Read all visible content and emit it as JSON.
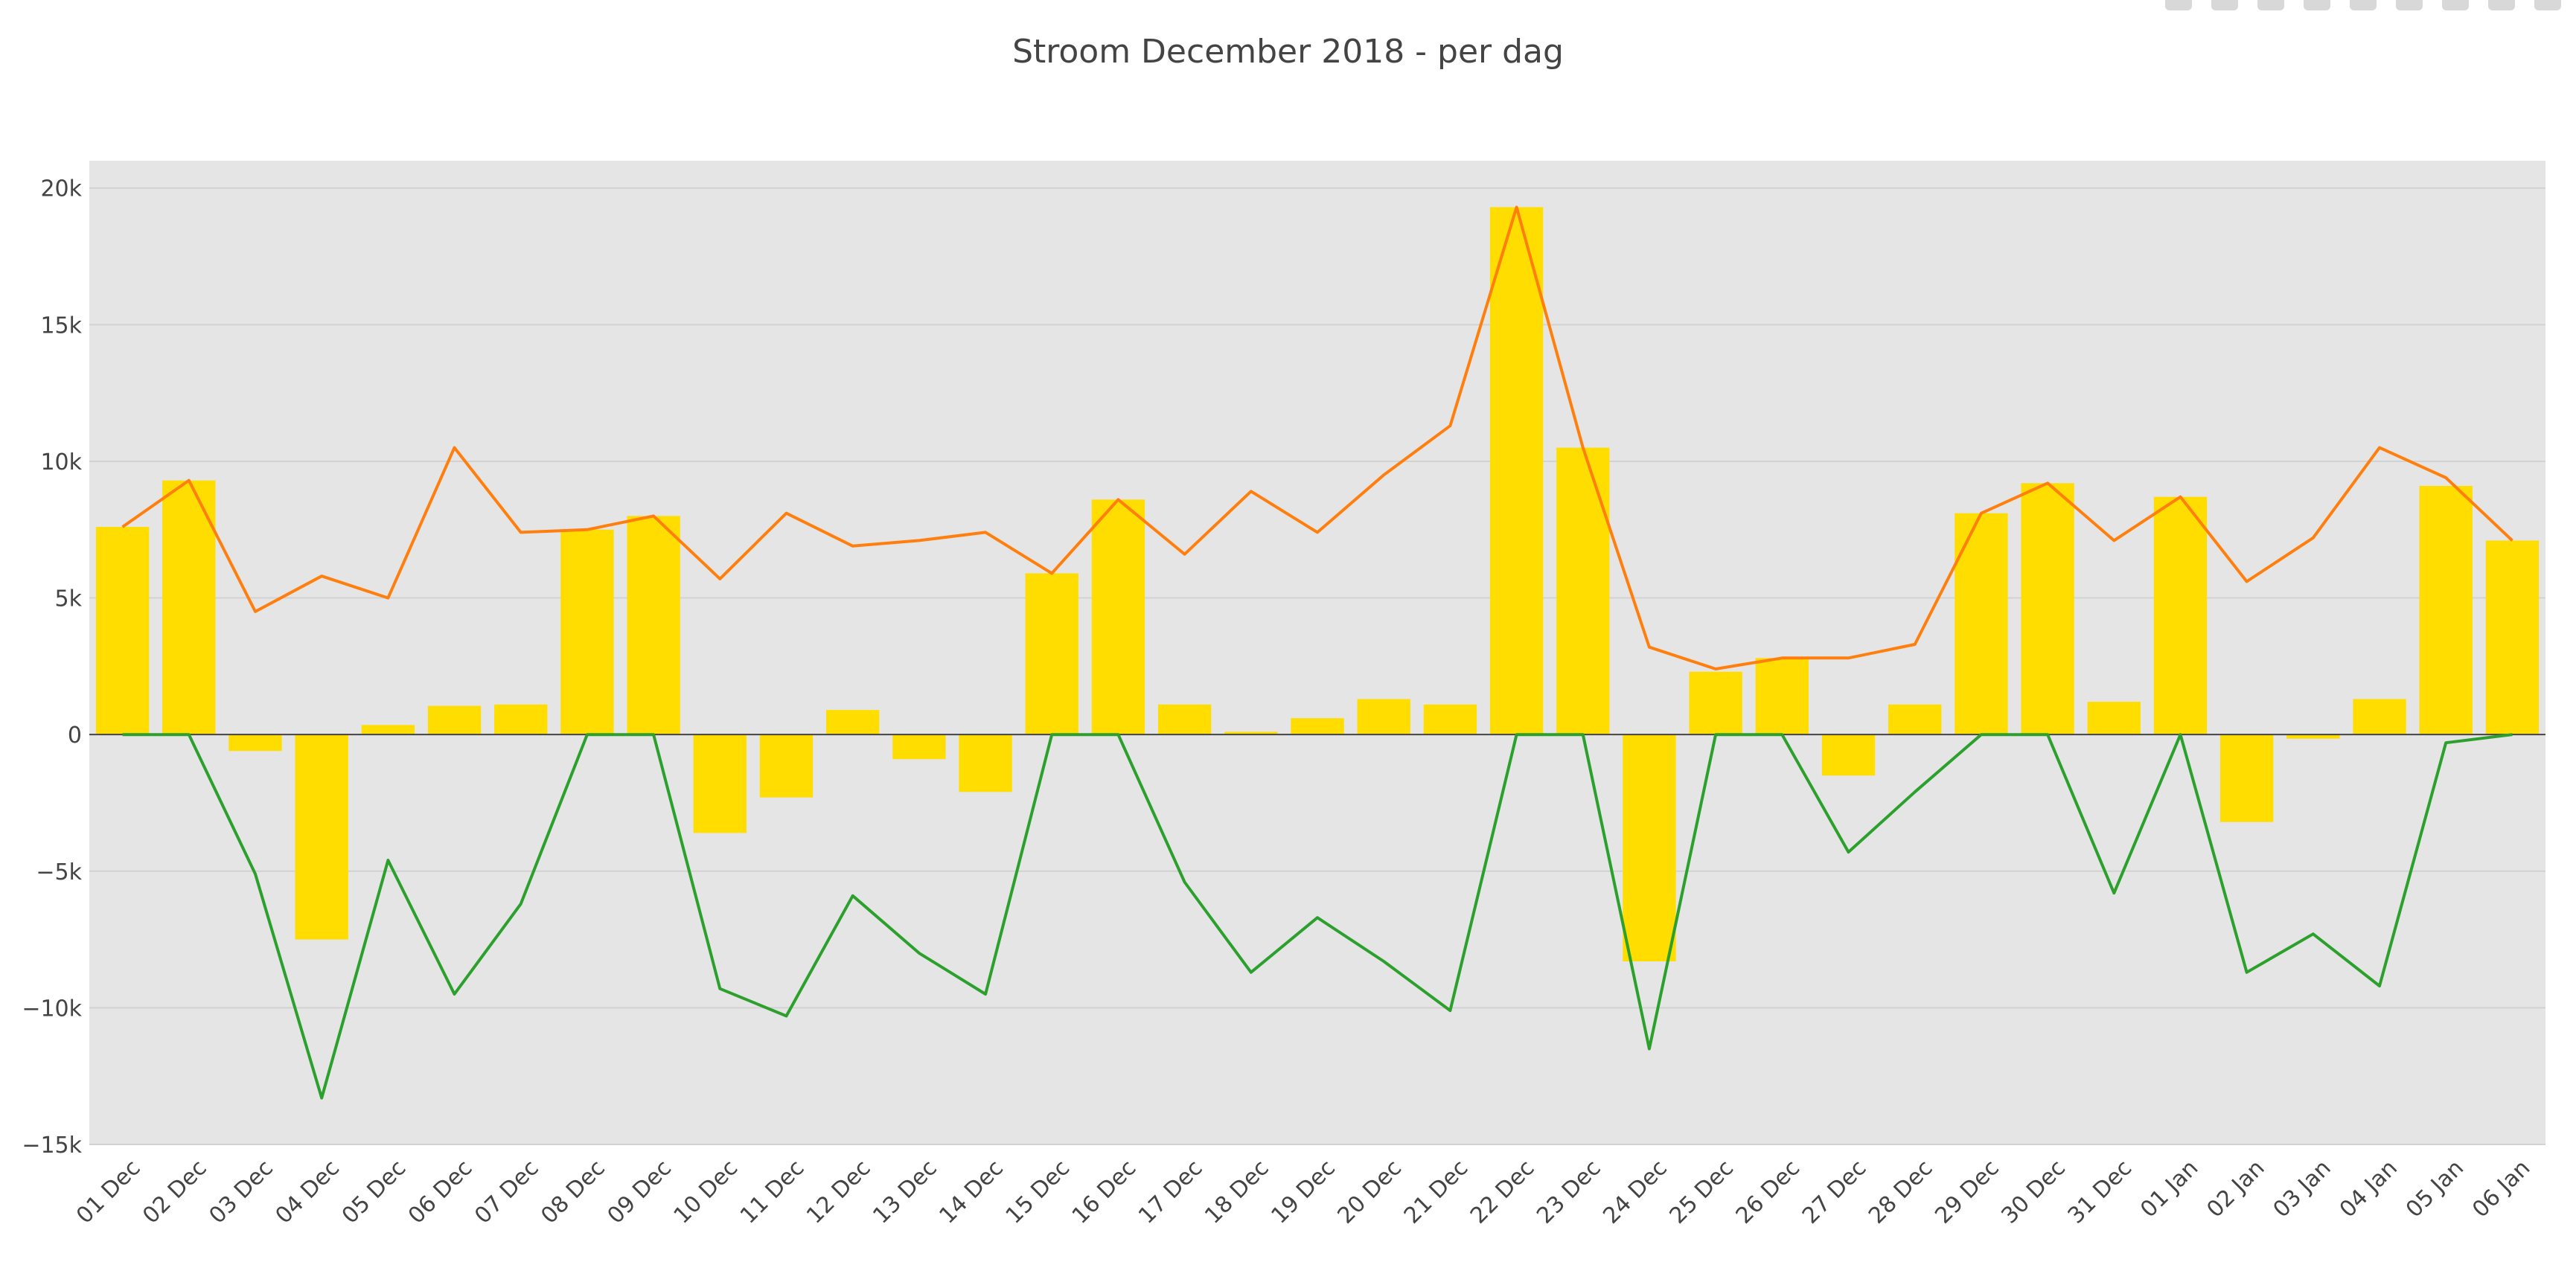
{
  "chart_data": {
    "type": "bar",
    "title": "Stroom December 2018 - per dag",
    "xlabel": "",
    "ylabel": "",
    "ylim": [
      -15000,
      21000
    ],
    "yticks": [
      -15000,
      -10000,
      -5000,
      0,
      5000,
      10000,
      15000,
      20000
    ],
    "ytick_labels": [
      "−15k",
      "−10k",
      "−5k",
      "0",
      "5k",
      "10k",
      "15k",
      "20k"
    ],
    "grid": true,
    "legend": "none",
    "categories": [
      "01 Dec",
      "02 Dec",
      "03 Dec",
      "04 Dec",
      "05 Dec",
      "06 Dec",
      "07 Dec",
      "08 Dec",
      "09 Dec",
      "10 Dec",
      "11 Dec",
      "12 Dec",
      "13 Dec",
      "14 Dec",
      "15 Dec",
      "16 Dec",
      "17 Dec",
      "18 Dec",
      "19 Dec",
      "20 Dec",
      "21 Dec",
      "22 Dec",
      "23 Dec",
      "24 Dec",
      "25 Dec",
      "26 Dec",
      "27 Dec",
      "28 Dec",
      "29 Dec",
      "30 Dec",
      "31 Dec",
      "01 Jan",
      "02 Jan",
      "03 Jan",
      "04 Jan",
      "05 Jan",
      "06 Jan"
    ],
    "series": [
      {
        "type": "bar",
        "color": "#ffdd00",
        "values": [
          7600,
          9300,
          -600,
          -7500,
          350,
          1050,
          1100,
          7500,
          8000,
          -3600,
          -2300,
          900,
          -900,
          -2100,
          5900,
          8600,
          1100,
          100,
          600,
          1300,
          1100,
          19300,
          10500,
          -8300,
          2300,
          2800,
          -1500,
          1100,
          8100,
          9200,
          1200,
          8700,
          -3200,
          -150,
          1300,
          9100,
          7100
        ]
      },
      {
        "type": "line",
        "color": "#ff7f0e",
        "values": [
          7600,
          9300,
          4500,
          5800,
          5000,
          10500,
          7400,
          7500,
          8000,
          5700,
          8100,
          6900,
          7100,
          7400,
          5900,
          8600,
          6600,
          8900,
          7400,
          9500,
          11300,
          19300,
          10500,
          3200,
          2400,
          2800,
          2800,
          3300,
          8100,
          9200,
          7100,
          8700,
          5600,
          7200,
          10500,
          9400,
          7100
        ]
      },
      {
        "type": "line",
        "color": "#2ca02c",
        "values": [
          0,
          0,
          -5100,
          -13300,
          -4600,
          -9500,
          -6200,
          0,
          0,
          -9300,
          -10300,
          -5900,
          -8000,
          -9500,
          0,
          0,
          -5400,
          -8700,
          -6700,
          -8300,
          -10100,
          0,
          0,
          -11500,
          0,
          0,
          -4300,
          -2100,
          0,
          0,
          -5800,
          0,
          -8700,
          -7300,
          -9200,
          -300,
          0
        ]
      }
    ]
  },
  "modebar": {
    "icons": [
      "camera-icon",
      "zoom-icon",
      "pan-icon",
      "box-select-icon",
      "lasso-icon",
      "zoom-in-icon",
      "zoom-out-icon",
      "autoscale-icon",
      "reset-axes-icon"
    ]
  }
}
